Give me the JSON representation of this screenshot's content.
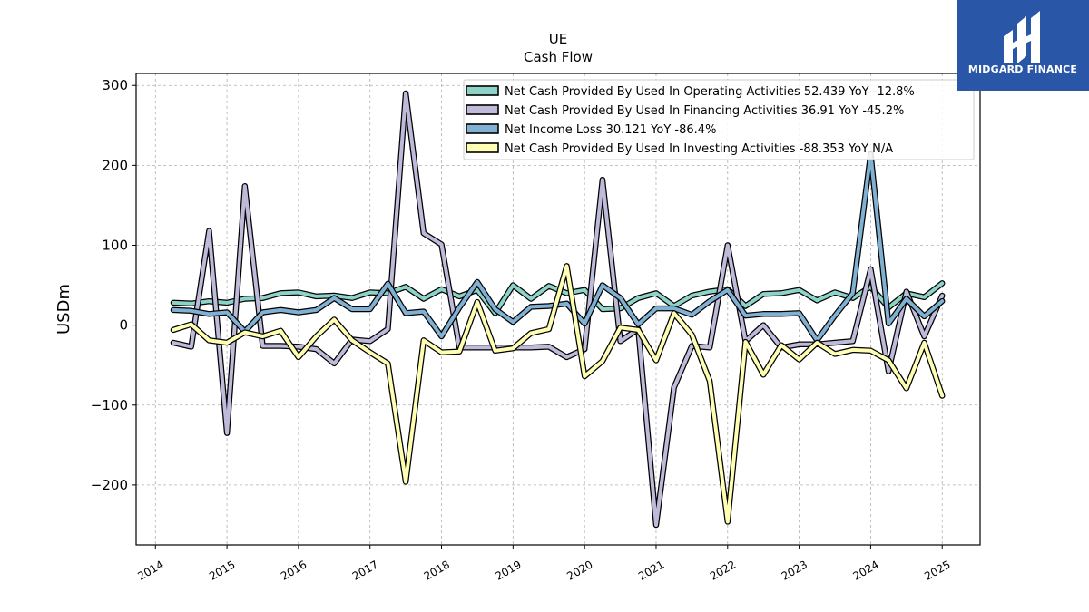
{
  "brand": {
    "name": "MIDGARD FINANCE",
    "color": "#2a56a8"
  },
  "chart_data": {
    "type": "line",
    "title": "UE",
    "subtitle": "Cash Flow",
    "xlabel": "",
    "ylabel": "USDm",
    "xlim": [
      2013.73,
      2025.53
    ],
    "ylim": [
      -275,
      315
    ],
    "x_ticks": [
      2014,
      2015,
      2016,
      2017,
      2018,
      2019,
      2020,
      2021,
      2022,
      2023,
      2024,
      2025
    ],
    "y_ticks": [
      -200,
      -100,
      0,
      100,
      200,
      300
    ],
    "y_tick_labels": [
      "−200",
      "−100",
      "0",
      "100",
      "200",
      "300"
    ],
    "grid": true,
    "legend_position": "top-right",
    "series": [
      {
        "name": "Net Cash Provided By Used In Operating Activities  52.439 YoY -12.8%",
        "color": "#8dd3c7",
        "points": [
          [
            2014.25,
            28
          ],
          [
            2014.5,
            27
          ],
          [
            2014.75,
            30
          ],
          [
            2015.0,
            28
          ],
          [
            2015.25,
            33
          ],
          [
            2015.5,
            34
          ],
          [
            2015.75,
            40
          ],
          [
            2016.0,
            41
          ],
          [
            2016.25,
            36
          ],
          [
            2016.5,
            37
          ],
          [
            2016.75,
            34
          ],
          [
            2017.0,
            41
          ],
          [
            2017.25,
            40
          ],
          [
            2017.5,
            48
          ],
          [
            2017.75,
            33
          ],
          [
            2018.0,
            45
          ],
          [
            2018.25,
            36
          ],
          [
            2018.5,
            44
          ],
          [
            2018.75,
            15
          ],
          [
            2019.0,
            50
          ],
          [
            2019.25,
            33
          ],
          [
            2019.5,
            49
          ],
          [
            2019.75,
            40
          ],
          [
            2020.0,
            44
          ],
          [
            2020.25,
            20
          ],
          [
            2020.5,
            21
          ],
          [
            2020.75,
            34
          ],
          [
            2021.0,
            40
          ],
          [
            2021.25,
            24
          ],
          [
            2021.5,
            37
          ],
          [
            2021.75,
            42
          ],
          [
            2022.0,
            45
          ],
          [
            2022.25,
            24
          ],
          [
            2022.5,
            39
          ],
          [
            2022.75,
            40
          ],
          [
            2023.0,
            44
          ],
          [
            2023.25,
            31
          ],
          [
            2023.5,
            41
          ],
          [
            2023.75,
            34
          ],
          [
            2024.0,
            48
          ],
          [
            2024.25,
            22
          ],
          [
            2024.5,
            40
          ],
          [
            2024.75,
            35
          ],
          [
            2025.0,
            52.4
          ]
        ]
      },
      {
        "name": "Net Cash Provided By Used In Financing Activities  36.91 YoY -45.2%",
        "color": "#bebada",
        "points": [
          [
            2014.25,
            -22
          ],
          [
            2014.5,
            -27
          ],
          [
            2014.75,
            118
          ],
          [
            2015.0,
            -135
          ],
          [
            2015.25,
            174
          ],
          [
            2015.5,
            -26
          ],
          [
            2015.75,
            -26
          ],
          [
            2016.0,
            -27
          ],
          [
            2016.25,
            -30
          ],
          [
            2016.5,
            -48
          ],
          [
            2016.75,
            -18
          ],
          [
            2017.0,
            -20
          ],
          [
            2017.25,
            -5
          ],
          [
            2017.5,
            290
          ],
          [
            2017.75,
            115
          ],
          [
            2018.0,
            101
          ],
          [
            2018.25,
            -28
          ],
          [
            2018.5,
            -28
          ],
          [
            2018.75,
            -28
          ],
          [
            2019.0,
            -28
          ],
          [
            2019.25,
            -28
          ],
          [
            2019.5,
            -27
          ],
          [
            2019.75,
            -40
          ],
          [
            2020.0,
            -30
          ],
          [
            2020.25,
            182
          ],
          [
            2020.5,
            -20
          ],
          [
            2020.75,
            -5
          ],
          [
            2021.0,
            -250
          ],
          [
            2021.25,
            -78
          ],
          [
            2021.5,
            -26
          ],
          [
            2021.75,
            -28
          ],
          [
            2022.0,
            100
          ],
          [
            2022.25,
            -20
          ],
          [
            2022.5,
            0
          ],
          [
            2022.75,
            -28
          ],
          [
            2023.0,
            -24
          ],
          [
            2023.25,
            -24
          ],
          [
            2023.5,
            -22
          ],
          [
            2023.75,
            -20
          ],
          [
            2024.0,
            70
          ],
          [
            2024.25,
            -58
          ],
          [
            2024.5,
            42
          ],
          [
            2024.75,
            -14
          ],
          [
            2025.0,
            36.9
          ]
        ]
      },
      {
        "name": "Net Income Loss  30.121 YoY -86.4%",
        "color": "#80b1d3",
        "points": [
          [
            2014.25,
            19
          ],
          [
            2014.5,
            18
          ],
          [
            2014.75,
            14
          ],
          [
            2015.0,
            16
          ],
          [
            2015.25,
            -8
          ],
          [
            2015.5,
            16
          ],
          [
            2015.75,
            19
          ],
          [
            2016.0,
            16
          ],
          [
            2016.25,
            19
          ],
          [
            2016.5,
            34
          ],
          [
            2016.75,
            20
          ],
          [
            2017.0,
            20
          ],
          [
            2017.25,
            52
          ],
          [
            2017.5,
            15
          ],
          [
            2017.75,
            17
          ],
          [
            2018.0,
            -14
          ],
          [
            2018.25,
            22
          ],
          [
            2018.5,
            54
          ],
          [
            2018.75,
            20
          ],
          [
            2019.0,
            4
          ],
          [
            2019.25,
            23
          ],
          [
            2019.5,
            24
          ],
          [
            2019.75,
            27
          ],
          [
            2020.0,
            2
          ],
          [
            2020.25,
            50
          ],
          [
            2020.5,
            34
          ],
          [
            2020.75,
            1
          ],
          [
            2021.0,
            21
          ],
          [
            2021.25,
            21
          ],
          [
            2021.5,
            13
          ],
          [
            2021.75,
            30
          ],
          [
            2022.0,
            44
          ],
          [
            2022.25,
            12
          ],
          [
            2022.5,
            14
          ],
          [
            2022.75,
            14
          ],
          [
            2023.0,
            15
          ],
          [
            2023.25,
            -19
          ],
          [
            2023.5,
            12
          ],
          [
            2023.75,
            40
          ],
          [
            2024.0,
            214
          ],
          [
            2024.25,
            2
          ],
          [
            2024.5,
            33
          ],
          [
            2024.75,
            11
          ],
          [
            2025.0,
            30.1
          ]
        ]
      },
      {
        "name": "Net Cash Provided By Used In Investing Activities  -88.353 YoY N/A",
        "color": "#ffffb3",
        "points": [
          [
            2014.25,
            -6
          ],
          [
            2014.5,
            1
          ],
          [
            2014.75,
            -19
          ],
          [
            2015.0,
            -22
          ],
          [
            2015.25,
            -9
          ],
          [
            2015.5,
            -14
          ],
          [
            2015.75,
            -7
          ],
          [
            2016.0,
            -40
          ],
          [
            2016.25,
            -14
          ],
          [
            2016.5,
            7
          ],
          [
            2016.75,
            -19
          ],
          [
            2017.0,
            -34
          ],
          [
            2017.25,
            -48
          ],
          [
            2017.5,
            -196
          ],
          [
            2017.75,
            -19
          ],
          [
            2018.0,
            -34
          ],
          [
            2018.25,
            -33
          ],
          [
            2018.5,
            29
          ],
          [
            2018.75,
            -32
          ],
          [
            2019.0,
            -29
          ],
          [
            2019.25,
            -10
          ],
          [
            2019.5,
            -5
          ],
          [
            2019.75,
            74
          ],
          [
            2020.0,
            -64
          ],
          [
            2020.25,
            -45
          ],
          [
            2020.5,
            -3
          ],
          [
            2020.75,
            -6
          ],
          [
            2021.0,
            -44
          ],
          [
            2021.25,
            15
          ],
          [
            2021.5,
            -12
          ],
          [
            2021.75,
            -70
          ],
          [
            2022.0,
            -246
          ],
          [
            2022.25,
            -21
          ],
          [
            2022.5,
            -62
          ],
          [
            2022.75,
            -25
          ],
          [
            2023.0,
            -43
          ],
          [
            2023.25,
            -22
          ],
          [
            2023.5,
            -36
          ],
          [
            2023.75,
            -31
          ],
          [
            2024.0,
            -32
          ],
          [
            2024.25,
            -44
          ],
          [
            2024.5,
            -79
          ],
          [
            2024.75,
            -22
          ],
          [
            2025.0,
            -88.4
          ]
        ]
      }
    ]
  }
}
